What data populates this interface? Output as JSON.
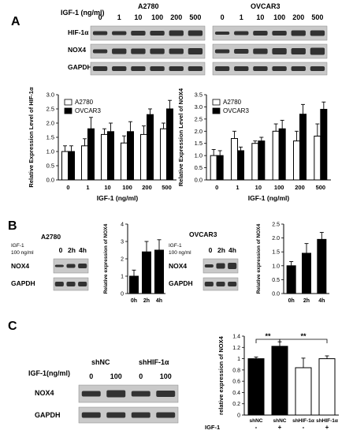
{
  "panel_labels": {
    "a": "A",
    "b": "B",
    "c": "C"
  },
  "blot_a": {
    "header": "IGF-1 (ng/ml)",
    "cell_lines": [
      "A2780",
      "OVCAR3"
    ],
    "doses": [
      "0",
      "1",
      "10",
      "100",
      "200",
      "500"
    ],
    "rows": [
      "HIF-1α",
      "NOX4",
      "GAPDH"
    ]
  },
  "blot_b": {
    "left_title": "A2780",
    "right_title": "OVCAR3",
    "treatment": [
      "IGF-1",
      "100 ng/ml"
    ],
    "times": [
      "0",
      "2h",
      "4h"
    ],
    "rows": [
      "NOX4",
      "GAPDH"
    ]
  },
  "blot_c": {
    "header": "IGF-1(ng/ml)",
    "groups": [
      "shNC",
      "shHIF-1α"
    ],
    "doses": [
      "0",
      "100",
      "0",
      "100"
    ],
    "rows": [
      "NOX4",
      "GAPDH"
    ]
  },
  "chart_data": [
    {
      "type": "bar",
      "id": "A-left",
      "ylabel": "Relative Expression Level of HIF-1α",
      "xlabel": "IGF-1 (ng/ml)",
      "categories": [
        "0",
        "1",
        "10",
        "100",
        "200",
        "500"
      ],
      "ylim": [
        0,
        3.0
      ],
      "yticks": [
        "0.0",
        "0.5",
        "1.0",
        "1.5",
        "2.0",
        "2.5",
        "3.0"
      ],
      "legend_position": "top-left",
      "series": [
        {
          "name": "A2780",
          "values": [
            1.0,
            1.2,
            1.6,
            1.3,
            1.6,
            1.8
          ],
          "errors": [
            0.2,
            0.25,
            0.2,
            0.25,
            0.3,
            0.2
          ]
        },
        {
          "name": "OVCAR3",
          "values": [
            1.0,
            1.8,
            1.7,
            1.7,
            2.3,
            2.5
          ],
          "errors": [
            0.2,
            0.4,
            0.3,
            0.35,
            0.2,
            0.3
          ]
        }
      ]
    },
    {
      "type": "bar",
      "id": "A-right",
      "ylabel": "Relative Expression Level of NOX4",
      "xlabel": "IGF-1 (ng/ml)",
      "categories": [
        "0",
        "1",
        "10",
        "100",
        "200",
        "500"
      ],
      "ylim": [
        0,
        3.5
      ],
      "yticks": [
        "0.0",
        "0.5",
        "1.0",
        "1.5",
        "2.0",
        "2.5",
        "3.0",
        "3.5"
      ],
      "legend_position": "top-left",
      "series": [
        {
          "name": "A2780",
          "values": [
            1.0,
            1.7,
            1.5,
            2.0,
            1.6,
            1.8
          ],
          "errors": [
            0.25,
            0.3,
            0.1,
            0.3,
            0.4,
            0.5
          ]
        },
        {
          "name": "OVCAR3",
          "values": [
            1.0,
            1.2,
            1.6,
            2.1,
            2.7,
            2.9
          ],
          "errors": [
            0.2,
            0.15,
            0.15,
            0.35,
            0.4,
            0.3
          ]
        }
      ]
    },
    {
      "type": "bar",
      "id": "B-left",
      "ylabel": "Relative expression of NOX4",
      "categories": [
        "0h",
        "2h",
        "4h"
      ],
      "ylim": [
        0,
        4
      ],
      "yticks": [
        "0",
        "1",
        "2",
        "3",
        "4"
      ],
      "values": [
        1.0,
        2.4,
        2.5
      ],
      "errors": [
        0.35,
        0.6,
        0.6
      ]
    },
    {
      "type": "bar",
      "id": "B-right",
      "ylabel": "Relative expression of NOX4",
      "categories": [
        "0h",
        "2h",
        "4h"
      ],
      "ylim": [
        0,
        2.5
      ],
      "yticks": [
        "0.0",
        "0.5",
        "1.0",
        "1.5",
        "2.0",
        "2.5"
      ],
      "values": [
        1.0,
        1.45,
        1.95
      ],
      "errors": [
        0.15,
        0.35,
        0.25
      ]
    },
    {
      "type": "bar",
      "id": "C",
      "ylabel": "relative expression of NOX4",
      "categories": [
        "shNC",
        "shNC",
        "shHIF-1α",
        "shHIF-1α"
      ],
      "treatment_label": "IGF-1",
      "treatment": [
        "-",
        "+",
        "-",
        "+"
      ],
      "fills": [
        "#000000",
        "#000000",
        "#ffffff",
        "#ffffff"
      ],
      "ylim": [
        0,
        1.4
      ],
      "yticks": [
        "0",
        "0.2",
        "0.4",
        "0.6",
        "0.8",
        "1",
        "1.2",
        "1.4"
      ],
      "values": [
        1.0,
        1.22,
        0.84,
        1.0
      ],
      "errors": [
        0.03,
        0.08,
        0.17,
        0.05
      ],
      "significance": [
        "**",
        "**"
      ]
    }
  ]
}
